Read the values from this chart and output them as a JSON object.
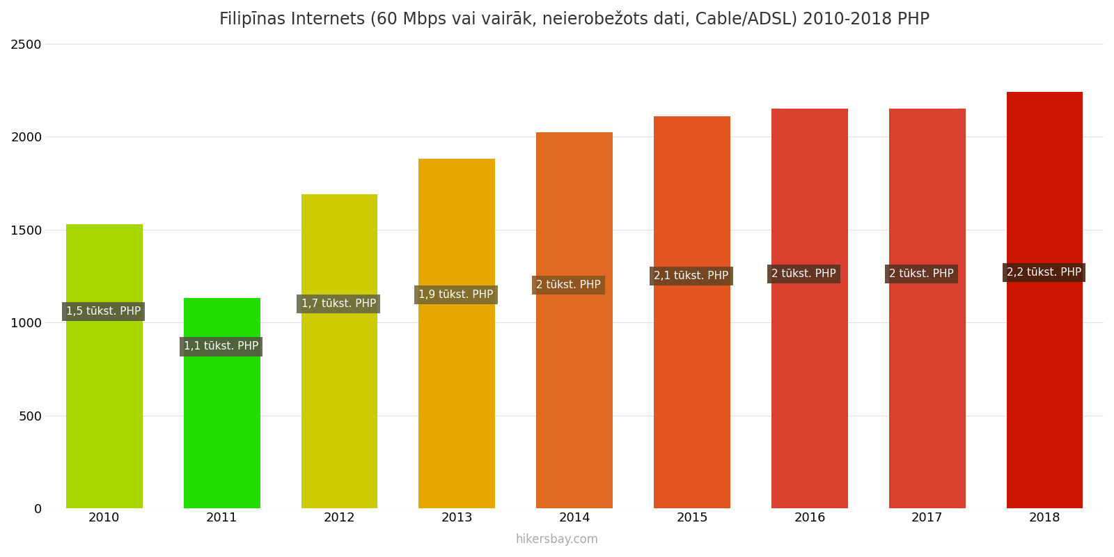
{
  "title": "Filipīnas Internets (60 Mbps vai vairāk, neierobežots dati, Cable/ADSL) 2010-2018 PHP",
  "years": [
    2010,
    2011,
    2012,
    2013,
    2014,
    2015,
    2016,
    2017,
    2018
  ],
  "values": [
    1530,
    1130,
    1690,
    1880,
    2025,
    2110,
    2150,
    2150,
    2240
  ],
  "bar_colors": [
    "#a8d400",
    "#22dd00",
    "#cccc00",
    "#e6a800",
    "#e06820",
    "#e05520",
    "#d94030",
    "#d94030",
    "#cc1500"
  ],
  "labels": [
    "1,5 tūkst. PHP",
    "1,1 tūkst. PHP",
    "1,7 tūkst. PHP",
    "1,9 tūkst. PHP",
    "2 tūkst. PHP",
    "2,1 tūkst. PHP",
    "2 tūkst. PHP",
    "2 tūkst. PHP",
    "2,2 tūkst. PHP"
  ],
  "label_y_offsets": [
    1060,
    870,
    1100,
    1150,
    1200,
    1250,
    1260,
    1260,
    1270
  ],
  "ylim": [
    0,
    2500
  ],
  "yticks": [
    0,
    500,
    1000,
    1500,
    2000,
    2500
  ],
  "label_bg_colors": [
    "#555544",
    "#555544",
    "#666644",
    "#776633",
    "#885522",
    "#664422",
    "#553322",
    "#553322",
    "#442211"
  ],
  "label_text_color": "#ffffff",
  "watermark": "hikersbay.com",
  "background_color": "#ffffff",
  "title_fontsize": 17,
  "bar_width": 0.65
}
